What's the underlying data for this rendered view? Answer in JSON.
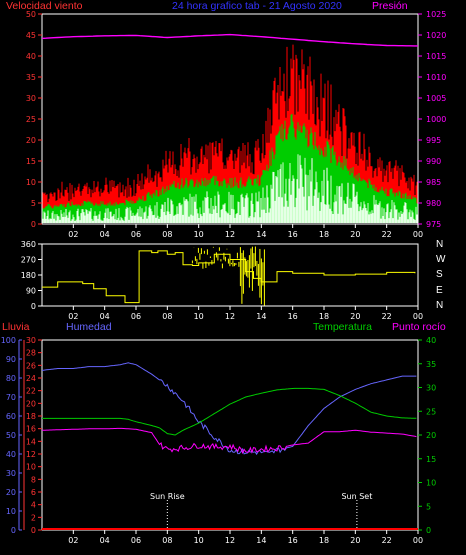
{
  "top_panel": {
    "label_wind": "Velocidad viento",
    "title": "24 hora grafico tab - 21 Agosto 2020",
    "label_pressure": "Presión",
    "left_ticks": [
      "50",
      "45",
      "40",
      "35",
      "30",
      "25",
      "20",
      "15",
      "10",
      "5",
      "0"
    ],
    "right_ticks": [
      "1025",
      "1020",
      "1015",
      "1010",
      "1005",
      "1000",
      "995",
      "990",
      "985",
      "980",
      "975"
    ]
  },
  "direction_panel": {
    "left_ticks": [
      "360",
      "270",
      "180",
      "90",
      "0"
    ],
    "compass": [
      "N",
      "W",
      "S",
      "E",
      "N"
    ]
  },
  "bottom_panel": {
    "label_rain": "Lluvia",
    "label_humidity": "Humedad",
    "label_temperature": "Temperatura",
    "label_dewpoint": "Punto rocío",
    "humidity_ticks": [
      "100",
      "90",
      "80",
      "70",
      "60",
      "50",
      "40",
      "30",
      "20",
      "10",
      "0"
    ],
    "rain_ticks": [
      "30",
      "28",
      "26",
      "24",
      "22",
      "20",
      "18",
      "16",
      "14",
      "12",
      "10",
      "8",
      "6",
      "4",
      "2",
      "0"
    ],
    "temp_ticks": [
      "40",
      "35",
      "30",
      "25",
      "20",
      "15",
      "10",
      "5",
      "0"
    ],
    "sunrise": "Sun Rise",
    "sunset": "Sun Set"
  },
  "x_ticks": [
    "02",
    "04",
    "06",
    "08",
    "10",
    "12",
    "14",
    "16",
    "18",
    "20",
    "22",
    "00"
  ],
  "colors": {
    "wind_gust": "#ff0000",
    "wind_avg": "#00cc00",
    "wind_min": "#ffffff",
    "wind_min2": "#ccffcc",
    "pressure": "#ff00ff",
    "direction": "#ffff00",
    "rain": "#ff0000",
    "humidity": "#6666ff",
    "temperature": "#00cc00",
    "dewpoint": "#ff00ff",
    "axis_left_top": "#ff3333",
    "axis_right_top": "#ff00ff",
    "title": "#3333ff"
  },
  "chart_data": [
    {
      "type": "line",
      "x_unit": "hour",
      "xlim": [
        0,
        24
      ],
      "ylim": [
        0,
        50
      ],
      "y2lim": [
        975,
        1025
      ],
      "series": [
        {
          "name": "Velocidad viento",
          "axis": "left",
          "x": [
            0,
            1,
            2,
            3,
            4,
            5,
            6,
            7,
            8,
            9,
            10,
            11,
            12,
            13,
            14,
            15,
            15.5,
            16,
            17,
            18,
            19,
            20,
            21,
            22,
            23,
            24
          ],
          "values": [
            6,
            6,
            7,
            7,
            7,
            7,
            8,
            10,
            12,
            14,
            14,
            15,
            14,
            14,
            15,
            28,
            32,
            33,
            30,
            26,
            22,
            17,
            13,
            11,
            10,
            8
          ]
        },
        {
          "name": "Presión",
          "axis": "right",
          "x": [
            0,
            2,
            4,
            6,
            8,
            10,
            12,
            14,
            16,
            18,
            20,
            22,
            24
          ],
          "values": [
            1019.2,
            1019.6,
            1019.8,
            1019.9,
            1019.4,
            1019.8,
            1020.1,
            1019.6,
            1019,
            1018.4,
            1017.9,
            1017.5,
            1017.4
          ]
        }
      ]
    },
    {
      "type": "line",
      "x_unit": "hour",
      "xlim": [
        0,
        24
      ],
      "ylim": [
        0,
        360
      ],
      "series": [
        {
          "name": "Dirección",
          "x": [
            0,
            0.6,
            1,
            1.2,
            2,
            2.6,
            3,
            3.3,
            3.8,
            4.1,
            5,
            5.3,
            6,
            6.2,
            7,
            7.4,
            8,
            8.5,
            9,
            9.6,
            10,
            11,
            12,
            13,
            13.5,
            14,
            15,
            16,
            18,
            20,
            22,
            23.8
          ],
          "values": [
            110,
            110,
            140,
            140,
            140,
            130,
            130,
            100,
            100,
            60,
            60,
            20,
            20,
            320,
            310,
            320,
            300,
            310,
            240,
            235,
            250,
            300,
            270,
            200,
            160,
            140,
            200,
            190,
            180,
            185,
            195,
            190
          ]
        }
      ]
    },
    {
      "type": "line",
      "x_unit": "hour",
      "xlim": [
        0,
        24
      ],
      "ylim": [
        0,
        100
      ],
      "y2lim": [
        0,
        40
      ],
      "series": [
        {
          "name": "Humedad",
          "axis": "left",
          "x": [
            0,
            1,
            2,
            3,
            4,
            5,
            5.5,
            6,
            7,
            8,
            9,
            10,
            11,
            12,
            13,
            14,
            14.5,
            15,
            16,
            17,
            18,
            19,
            20,
            21,
            22,
            23,
            24
          ],
          "values": [
            84,
            85,
            85,
            86,
            86,
            87,
            88,
            87,
            82,
            76,
            68,
            57,
            49,
            42,
            41,
            41,
            40,
            42,
            44,
            55,
            64,
            70,
            74,
            77,
            79,
            81,
            81
          ]
        },
        {
          "name": "Temperatura",
          "axis": "right",
          "x": [
            0,
            1,
            2,
            3,
            4,
            5,
            5.5,
            6,
            7,
            7.5,
            8,
            8.5,
            9,
            10,
            11,
            12,
            13,
            14,
            15,
            16,
            17,
            18,
            19,
            20,
            21,
            22,
            23,
            24
          ],
          "values": [
            23.5,
            23.5,
            23.5,
            23.5,
            23.5,
            23.5,
            23.3,
            22.8,
            22.0,
            21.5,
            20.3,
            20.0,
            21.0,
            22.5,
            24.5,
            26.5,
            28.0,
            28.8,
            29.5,
            29.8,
            29.8,
            29.6,
            28.3,
            26.7,
            24.8,
            24.0,
            23.6,
            23.5
          ]
        },
        {
          "name": "Punto rocío",
          "axis": "right",
          "x": [
            0,
            1,
            2,
            3,
            4,
            5,
            6,
            7,
            7.5,
            8,
            9,
            10,
            11,
            12,
            13,
            14,
            15,
            16,
            17,
            18,
            19,
            20,
            21,
            22,
            23,
            24
          ],
          "values": [
            21.0,
            21.1,
            21.2,
            21.3,
            21.3,
            21.4,
            21.2,
            20.5,
            18.0,
            17.0,
            17.3,
            17.8,
            17.5,
            17.6,
            16.6,
            17.0,
            17.2,
            17.9,
            18.3,
            20.7,
            20.7,
            21.0,
            20.6,
            20.4,
            20.2,
            19.6
          ]
        },
        {
          "name": "Lluvia",
          "axis": "rain",
          "x": [
            0,
            24
          ],
          "values": [
            0,
            0
          ]
        }
      ]
    }
  ]
}
